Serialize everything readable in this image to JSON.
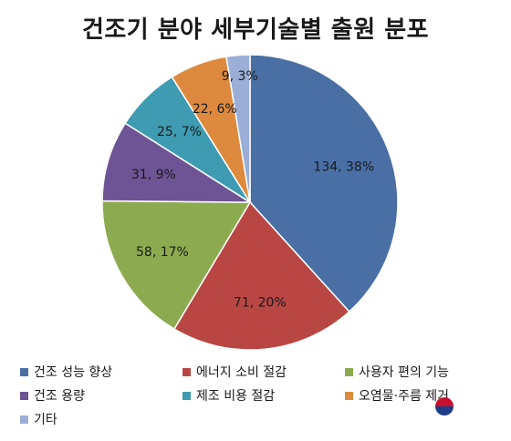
{
  "chart_data": {
    "type": "pie",
    "title": "건조기 분야 세부기술별 출원 분포",
    "slices": [
      {
        "label": "건조 성능 향상",
        "value": 134,
        "percent": 38,
        "data_label": "134, 38%",
        "color": "#4a6fa5"
      },
      {
        "label": "에너지 소비 절감",
        "value": 71,
        "percent": 20,
        "data_label": "71, 20%",
        "color": "#b84744"
      },
      {
        "label": "사용자 편의 기능",
        "value": 58,
        "percent": 17,
        "data_label": "58, 17%",
        "color": "#8cab50"
      },
      {
        "label": "건조 용량",
        "value": 31,
        "percent": 9,
        "data_label": "31, 9%",
        "color": "#6f5495"
      },
      {
        "label": "제조 비용 절감",
        "value": 25,
        "percent": 7,
        "data_label": "25, 7%",
        "color": "#3f9bb2"
      },
      {
        "label": "오염물·주름 제거",
        "value": 22,
        "percent": 6,
        "data_label": "22, 6%",
        "color": "#dd8a3e"
      },
      {
        "label": "기타",
        "value": 9,
        "percent": 3,
        "data_label": "9, 3%",
        "color": "#9aaed6"
      }
    ],
    "legend_position": "bottom"
  }
}
